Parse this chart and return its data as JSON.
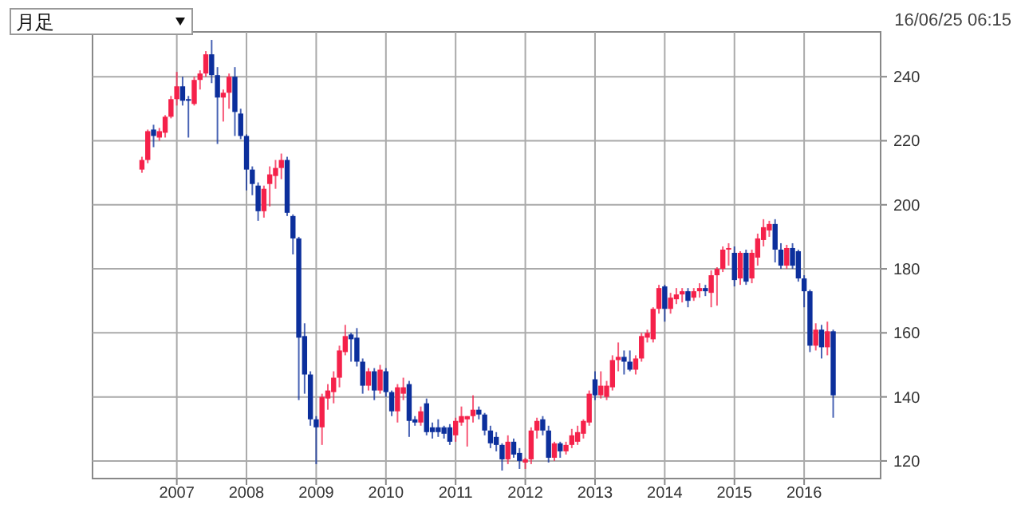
{
  "chart_data": {
    "type": "candlestick",
    "title": "月足",
    "annotations": [
      "16/06/25 06:15"
    ],
    "colors": [
      "#f5214a",
      "#f5214a",
      "#0c2f9c",
      "#f5214a",
      "#f5214a",
      "#f5214a",
      "#f5214a",
      "#0c2f9c",
      "#0c2f9c",
      "#f5214a",
      "#f5214a",
      "#f5214a",
      "#0c2f9c",
      "#0c2f9c",
      "#f5214a",
      "#f5214a",
      "#0c2f9c",
      "#0c2f9c",
      "#0c2f9c",
      "#0c2f9c",
      "#0c2f9c",
      "#f5214a",
      "#f5214a",
      "#f5214a",
      "#f5214a",
      "#0c2f9c",
      "#0c2f9c",
      "#0c2f9c",
      "#0c2f9c",
      "#0c2f9c",
      "#0c2f9c",
      "#f5214a",
      "#f5214a",
      "#f5214a",
      "#f5214a",
      "#f5214a",
      "#0c2f9c",
      "#0c2f9c",
      "#0c2f9c",
      "#f5214a",
      "#0c2f9c",
      "#f5214a",
      "#0c2f9c",
      "#0c2f9c",
      "#f5214a",
      "#f5214a",
      "#0c2f9c",
      "#0c2f9c",
      "#f5214a",
      "#0c2f9c",
      "#0c2f9c",
      "#0c2f9c",
      "#0c2f9c",
      "#0c2f9c",
      "#f5214a",
      "#f5214a",
      "#f5214a",
      "#f5214a",
      "#0c2f9c",
      "#0c2f9c",
      "#0c2f9c",
      "#0c2f9c",
      "#0c2f9c",
      "#f5214a",
      "#0c2f9c",
      "#0c2f9c",
      "#f5214a",
      "#f5214a",
      "#f5214a",
      "#0c2f9c",
      "#0c2f9c",
      "#f5214a",
      "#0c2f9c",
      "#f5214a",
      "#f5214a",
      "#f5214a",
      "#f5214a",
      "#f5214a",
      "#0c2f9c",
      "#f5214a",
      "#f5214a",
      "#f5214a",
      "#f5214a",
      "#0c2f9c",
      "#0c2f9c",
      "#f5214a",
      "#f5214a",
      "#f5214a",
      "#f5214a",
      "#f5214a",
      "#0c2f9c",
      "#f5214a",
      "#f5214a",
      "#f5214a",
      "#0c2f9c",
      "#f5214a",
      "#f5214a",
      "#0c2f9c",
      "#f5214a",
      "#f5214a",
      "#f5214a",
      "#f5214a",
      "#0c2f9c",
      "#f5214a",
      "#0c2f9c",
      "#f5214a",
      "#f5214a",
      "#f5214a",
      "#f5214a",
      "#0c2f9c",
      "#0c2f9c",
      "#f5214a",
      "#0c2f9c",
      "#0c2f9c",
      "#0c2f9c",
      "#0c2f9c",
      "#f5214a",
      "#0c2f9c",
      "#f5214a",
      "#0c2f9c"
    ],
    "x": [
      "2006-07",
      "2006-08",
      "2006-09",
      "2006-10",
      "2006-11",
      "2006-12",
      "2007-01",
      "2007-02",
      "2007-03",
      "2007-04",
      "2007-05",
      "2007-06",
      "2007-07",
      "2007-08",
      "2007-09",
      "2007-10",
      "2007-11",
      "2007-12",
      "2008-01",
      "2008-02",
      "2008-03",
      "2008-04",
      "2008-05",
      "2008-06",
      "2008-07",
      "2008-08",
      "2008-09",
      "2008-10",
      "2008-11",
      "2008-12",
      "2009-01",
      "2009-02",
      "2009-03",
      "2009-04",
      "2009-05",
      "2009-06",
      "2009-07",
      "2009-08",
      "2009-09",
      "2009-10",
      "2009-11",
      "2009-12",
      "2010-01",
      "2010-02",
      "2010-03",
      "2010-04",
      "2010-05",
      "2010-06",
      "2010-07",
      "2010-08",
      "2010-09",
      "2010-10",
      "2010-11",
      "2010-12",
      "2011-01",
      "2011-02",
      "2011-03",
      "2011-04",
      "2011-05",
      "2011-06",
      "2011-07",
      "2011-08",
      "2011-09",
      "2011-10",
      "2011-11",
      "2011-12",
      "2012-01",
      "2012-02",
      "2012-03",
      "2012-04",
      "2012-05",
      "2012-06",
      "2012-07",
      "2012-08",
      "2012-09",
      "2012-10",
      "2012-11",
      "2012-12",
      "2013-01",
      "2013-02",
      "2013-03",
      "2013-04",
      "2013-05",
      "2013-06",
      "2013-07",
      "2013-08",
      "2013-09",
      "2013-10",
      "2013-11",
      "2013-12",
      "2014-01",
      "2014-02",
      "2014-03",
      "2014-04",
      "2014-05",
      "2014-06",
      "2014-07",
      "2014-08",
      "2014-09",
      "2014-10",
      "2014-11",
      "2014-12",
      "2015-01",
      "2015-02",
      "2015-03",
      "2015-04",
      "2015-05",
      "2015-06",
      "2015-07",
      "2015-08",
      "2015-09",
      "2015-10",
      "2015-11",
      "2015-12",
      "2016-01",
      "2016-02",
      "2016-03",
      "2016-04",
      "2016-05",
      "2016-06"
    ],
    "ohlc": [
      [
        211,
        215,
        210,
        214
      ],
      [
        214,
        223.5,
        213,
        223
      ],
      [
        223.5,
        225,
        218,
        221.5
      ],
      [
        221,
        224,
        220,
        223
      ],
      [
        222.5,
        228,
        221,
        227.5
      ],
      [
        227.5,
        234,
        227,
        233
      ],
      [
        233,
        241.5,
        231,
        237
      ],
      [
        237,
        240,
        231,
        232.5
      ],
      [
        233,
        234,
        221,
        232.5
      ],
      [
        231.5,
        240,
        231,
        239
      ],
      [
        239,
        242,
        236,
        241
      ],
      [
        241,
        248,
        240,
        247
      ],
      [
        247,
        251.5,
        238,
        240.5
      ],
      [
        240.5,
        243,
        219,
        233.5
      ],
      [
        233.5,
        236,
        226,
        235
      ],
      [
        235,
        241,
        230,
        240
      ],
      [
        240,
        243,
        221.5,
        229
      ],
      [
        228.5,
        230,
        220.5,
        221.5
      ],
      [
        221.5,
        222,
        204.5,
        211
      ],
      [
        211,
        212,
        203,
        206.5
      ],
      [
        206,
        207,
        195,
        198
      ],
      [
        198,
        206,
        196,
        205
      ],
      [
        206.5,
        212,
        199.5,
        209.5
      ],
      [
        209,
        214,
        205,
        211.5
      ],
      [
        211.5,
        216,
        208,
        214
      ],
      [
        214,
        215,
        196.5,
        197.5
      ],
      [
        196.5,
        197,
        184.5,
        189.5
      ],
      [
        189.5,
        190,
        139,
        158.5
      ],
      [
        159,
        163,
        141,
        147
      ],
      [
        147,
        148,
        131,
        133
      ],
      [
        133,
        134,
        119,
        130.5
      ],
      [
        130.5,
        141,
        125,
        140
      ],
      [
        139.5,
        144,
        136,
        142
      ],
      [
        141.5,
        148,
        138,
        146
      ],
      [
        146,
        156,
        143,
        154.5
      ],
      [
        154,
        162.5,
        153,
        159
      ],
      [
        159.5,
        160,
        151,
        158
      ],
      [
        158.5,
        161.5,
        149.5,
        151
      ],
      [
        151,
        152,
        141,
        143.5
      ],
      [
        143.5,
        149,
        142,
        148
      ],
      [
        148,
        149,
        139,
        142
      ],
      [
        142,
        150,
        141,
        148.5
      ],
      [
        148,
        149,
        140,
        141.5
      ],
      [
        141.5,
        142,
        134,
        135.5
      ],
      [
        135.5,
        144,
        132,
        143
      ],
      [
        141,
        146,
        139,
        143
      ],
      [
        144,
        145,
        127.5,
        132.5
      ],
      [
        133,
        134,
        131,
        132
      ],
      [
        132,
        137,
        131,
        135.5
      ],
      [
        138,
        139.5,
        128,
        129
      ],
      [
        130.5,
        132,
        127,
        129
      ],
      [
        130.5,
        133,
        127.5,
        129
      ],
      [
        130.5,
        131,
        127,
        128.5
      ],
      [
        130.5,
        131.5,
        125,
        126
      ],
      [
        128,
        133.5,
        126,
        132.5
      ],
      [
        132,
        137,
        131,
        134
      ],
      [
        133,
        134,
        124.5,
        134
      ],
      [
        134,
        140.5,
        132,
        136
      ],
      [
        136,
        137,
        133,
        134.5
      ],
      [
        134.5,
        135,
        128,
        129.5
      ],
      [
        129.5,
        131,
        124,
        125.5
      ],
      [
        127.5,
        129,
        123,
        125
      ],
      [
        125,
        125.5,
        117,
        120.5
      ],
      [
        120.5,
        128,
        119,
        126
      ],
      [
        126,
        127,
        121,
        122
      ],
      [
        122.5,
        124,
        117.5,
        120
      ],
      [
        119.5,
        121,
        117.5,
        120.5
      ],
      [
        120.5,
        130.5,
        119,
        129.5
      ],
      [
        129.5,
        133.5,
        127,
        132.5
      ],
      [
        133,
        134,
        128,
        129.5
      ],
      [
        129.5,
        131,
        119.5,
        121
      ],
      [
        121,
        126,
        120,
        125.5
      ],
      [
        125.5,
        126,
        121,
        123
      ],
      [
        123,
        126,
        122,
        125
      ],
      [
        125,
        130,
        124,
        128
      ],
      [
        126,
        131,
        125,
        129
      ],
      [
        128.5,
        133,
        127,
        132.5
      ],
      [
        132,
        142,
        131,
        141
      ],
      [
        145.5,
        148,
        139,
        140.5
      ],
      [
        140.5,
        148,
        139.5,
        143.5
      ],
      [
        140,
        145,
        139,
        143.5
      ],
      [
        143,
        153,
        142,
        151.5
      ],
      [
        151.5,
        157,
        148,
        152.5
      ],
      [
        152.5,
        154.5,
        147,
        151
      ],
      [
        151,
        154.5,
        148,
        148.5
      ],
      [
        148.5,
        153,
        147,
        152
      ],
      [
        152,
        160,
        151,
        159
      ],
      [
        158.5,
        161,
        157,
        160
      ],
      [
        158,
        168,
        157,
        167.5
      ],
      [
        167.5,
        175,
        166,
        174
      ],
      [
        174.5,
        175,
        163.5,
        167.5
      ],
      [
        167.5,
        172.5,
        166,
        171
      ],
      [
        170.5,
        174,
        169,
        172
      ],
      [
        172,
        174,
        169.5,
        173
      ],
      [
        173,
        174,
        168,
        170
      ],
      [
        171,
        174,
        170,
        173
      ],
      [
        173,
        175.5,
        171,
        174
      ],
      [
        174,
        175,
        171.5,
        173
      ],
      [
        172.5,
        179.5,
        168,
        178
      ],
      [
        178,
        180.5,
        168.5,
        180
      ],
      [
        180,
        187,
        179,
        186
      ],
      [
        186,
        188,
        181,
        186.5
      ],
      [
        185,
        187,
        174.5,
        176.5
      ],
      [
        177,
        185.5,
        175,
        185
      ],
      [
        185,
        186,
        175,
        176
      ],
      [
        177,
        186,
        175.5,
        185
      ],
      [
        183.5,
        191,
        181,
        189.5
      ],
      [
        189,
        195.5,
        187,
        193
      ],
      [
        192,
        195,
        190,
        194
      ],
      [
        194,
        195.5,
        182,
        186
      ],
      [
        186,
        188,
        180,
        181
      ],
      [
        181,
        187.5,
        180,
        186.5
      ],
      [
        186.5,
        188,
        180,
        181
      ],
      [
        185.5,
        186,
        176,
        177
      ],
      [
        177,
        178,
        168,
        173
      ],
      [
        173,
        173.5,
        154,
        156
      ],
      [
        156,
        163,
        154.5,
        161
      ],
      [
        161,
        162.5,
        152,
        155.5
      ],
      [
        155.5,
        163.5,
        153,
        160.5
      ],
      [
        160.5,
        161,
        133.5,
        140.5
      ]
    ],
    "xlim": [
      "2005-10-16",
      "2017-02-06"
    ],
    "xticks": [
      "2007",
      "2008",
      "2009",
      "2010",
      "2011",
      "2012",
      "2013",
      "2014",
      "2015",
      "2016"
    ],
    "ylim": [
      114.5,
      254
    ],
    "yticks": [
      120,
      140,
      160,
      180,
      200,
      220,
      240
    ],
    "grid": true
  }
}
